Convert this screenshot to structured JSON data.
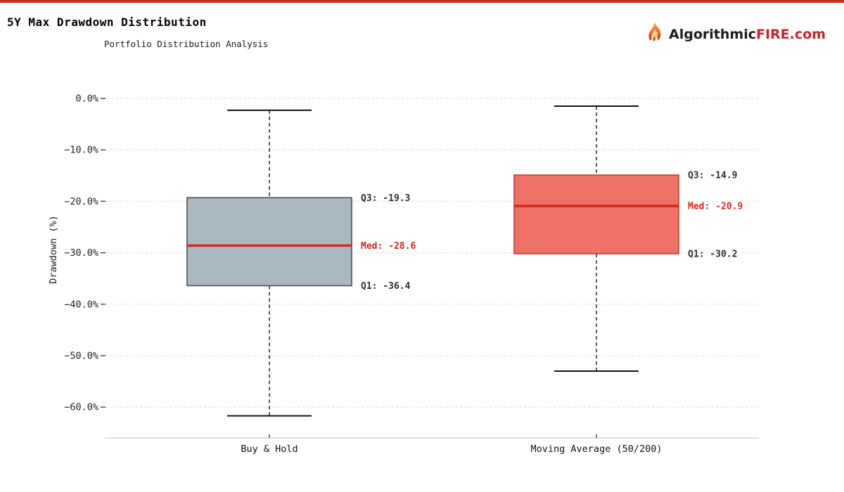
{
  "page": {
    "top_bar_color": "#cb2a1c",
    "background": "#ffffff"
  },
  "header": {
    "title": "5Y Max Drawdown Distribution",
    "subtitle": "Portfolio Distribution Analysis"
  },
  "logo": {
    "brand_dark": "Algorithmic",
    "brand_red": "FIRE",
    "brand_suffix": ".com",
    "icon": "flame-icon",
    "dark_color": "#1c1c1c",
    "red_color": "#cd2126"
  },
  "chart_data": {
    "type": "boxplot",
    "title": "5Y Max Drawdown Distribution",
    "subtitle": "Portfolio Distribution Analysis",
    "ylabel": "Drawdown (%)",
    "ylim": [
      -66,
      3.5
    ],
    "grid": true,
    "gridline_color": "#dedede",
    "spine_color": "#c9c9c9",
    "tick_color": "#333333",
    "tick_label_color": "#222222",
    "median_color": "#d8271a",
    "annotation_color": "#2e2e2e",
    "annotation_red": "#d8271a",
    "whisker_color": "#222222",
    "cap_color": "#111111",
    "yticks": [
      {
        "label": "0.0%",
        "value": 0
      },
      {
        "label": "−10.0%",
        "value": -10
      },
      {
        "label": "−20.0%",
        "value": -20
      },
      {
        "label": "−30.0%",
        "value": -30
      },
      {
        "label": "−40.0%",
        "value": -40
      },
      {
        "label": "−50.0%",
        "value": -50
      },
      {
        "label": "−60.0%",
        "value": -60
      }
    ],
    "categories": [
      "Buy & Hold",
      "Moving Average (50/200)"
    ],
    "series": [
      {
        "name": "Buy & Hold",
        "q1": -36.4,
        "median": -28.6,
        "q3": -19.3,
        "whisker_high": -2.3,
        "whisker_low": -61.7,
        "box_color": "#a9b8c1",
        "border_color": "#4f4f4f",
        "annotations": {
          "q3": "Q3: -19.3",
          "med": "Med: -28.6",
          "q1": "Q1: -36.4"
        }
      },
      {
        "name": "Moving Average (50/200)",
        "q1": -30.2,
        "median": -20.9,
        "q3": -14.9,
        "whisker_high": -1.5,
        "whisker_low": -53.0,
        "box_color": "#ed7166",
        "border_color": "#c23b2e",
        "annotations": {
          "q3": "Q3: -14.9",
          "med": "Med: -20.9",
          "q1": "Q1: -30.2"
        }
      }
    ]
  }
}
